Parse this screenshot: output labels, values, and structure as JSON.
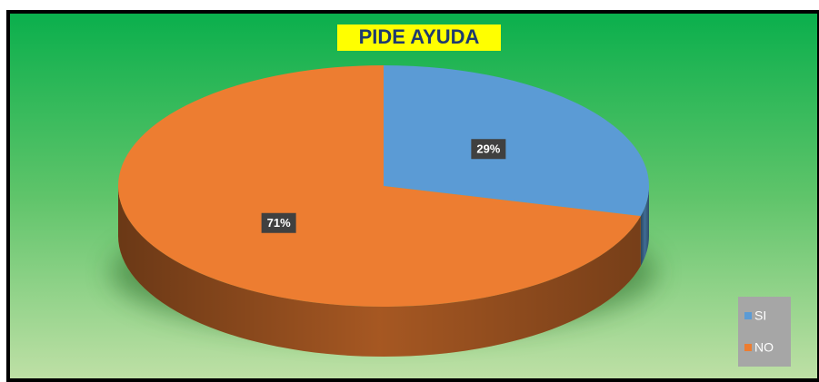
{
  "chart_data": {
    "type": "pie",
    "title": "PIDE AYUDA",
    "categories": [
      "SI",
      "NO"
    ],
    "values": [
      29,
      71
    ],
    "value_labels": [
      "29%",
      "71%"
    ],
    "colors": [
      "#5b9bd5",
      "#ed7d31"
    ],
    "legend": "bottom right"
  }
}
